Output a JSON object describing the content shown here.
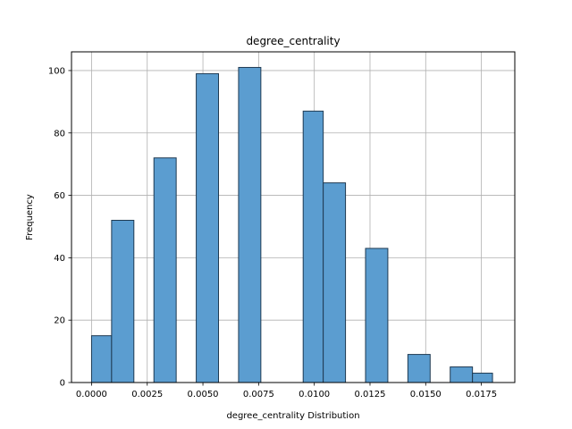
{
  "chart_data": {
    "type": "bar",
    "title": "degree_centrality",
    "xlabel": "degree_centrality Distribution",
    "ylabel": "Frequency",
    "xlim": [
      -0.0009,
      0.019
    ],
    "ylim": [
      0,
      106
    ],
    "grid": true,
    "bar_color": "#5b9dd0",
    "bar_edge_color": "#1f3a52",
    "bins": [
      {
        "x0": 0.0,
        "x1": 0.0009,
        "count": 15
      },
      {
        "x0": 0.0009,
        "x1": 0.0019,
        "count": 52
      },
      {
        "x0": 0.0028,
        "x1": 0.0038,
        "count": 72
      },
      {
        "x0": 0.0047,
        "x1": 0.0057,
        "count": 99
      },
      {
        "x0": 0.0066,
        "x1": 0.0076,
        "count": 101
      },
      {
        "x0": 0.0095,
        "x1": 0.0104,
        "count": 87
      },
      {
        "x0": 0.0104,
        "x1": 0.0114,
        "count": 64
      },
      {
        "x0": 0.0123,
        "x1": 0.0133,
        "count": 43
      },
      {
        "x0": 0.0142,
        "x1": 0.0152,
        "count": 9
      },
      {
        "x0": 0.0161,
        "x1": 0.0171,
        "count": 5
      },
      {
        "x0": 0.0171,
        "x1": 0.018,
        "count": 3
      }
    ],
    "x_ticks": [
      {
        "value": 0.0,
        "label": "0.0000"
      },
      {
        "value": 0.0025,
        "label": "0.0025"
      },
      {
        "value": 0.005,
        "label": "0.0050"
      },
      {
        "value": 0.0075,
        "label": "0.0075"
      },
      {
        "value": 0.01,
        "label": "0.0100"
      },
      {
        "value": 0.0125,
        "label": "0.0125"
      },
      {
        "value": 0.015,
        "label": "0.0150"
      },
      {
        "value": 0.0175,
        "label": "0.0175"
      }
    ],
    "y_ticks": [
      {
        "value": 0,
        "label": "0"
      },
      {
        "value": 20,
        "label": "20"
      },
      {
        "value": 40,
        "label": "40"
      },
      {
        "value": 60,
        "label": "60"
      },
      {
        "value": 80,
        "label": "80"
      },
      {
        "value": 100,
        "label": "100"
      }
    ]
  }
}
